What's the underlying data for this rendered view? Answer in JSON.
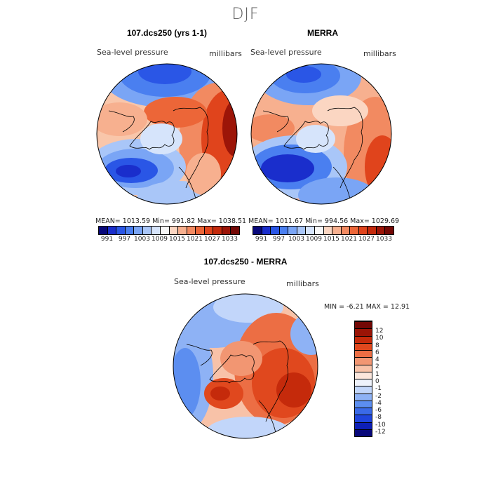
{
  "season": "DJF",
  "panels": {
    "model": {
      "title": "107.dcs250 (yrs 1-1)",
      "field_label": "Sea-level pressure",
      "units": "millibars",
      "stats": "MEAN= 1013.59   Min= 991.82   Max= 1038.51"
    },
    "obs": {
      "title": "MERRA",
      "field_label": "Sea-level pressure",
      "units": "millibars",
      "stats": "MEAN= 1011.67   Min= 994.56   Max= 1029.69"
    },
    "diff": {
      "title": "107.dcs250 - MERRA",
      "field_label": "Sea-level pressure",
      "units": "millibars",
      "stats": "MIN =   -6.21  MAX =   12.91"
    }
  },
  "slp_colorbar": {
    "labels": [
      "991",
      "997",
      "1003",
      "1009",
      "1015",
      "1021",
      "1027",
      "1033"
    ],
    "colors": [
      "#08087a",
      "#1a2ecc",
      "#2a56e6",
      "#4a7ff0",
      "#7aa5f5",
      "#a9c6f8",
      "#d6e4fb",
      "#f7f7f7",
      "#fbd6c2",
      "#f7b08f",
      "#f28a61",
      "#ec6638",
      "#e0441c",
      "#c42a0c",
      "#9c1508",
      "#730805"
    ]
  },
  "diff_colorbar": {
    "labels": [
      "-12",
      "-10",
      "-8",
      "-6",
      "-4",
      "-2",
      "-1",
      "0",
      "1",
      "2",
      "4",
      "6",
      "8",
      "10",
      "12"
    ],
    "colors": [
      "#08087a",
      "#0d1fb5",
      "#1f45dd",
      "#3a6ae8",
      "#5c8ef0",
      "#8eb2f5",
      "#c2d6fa",
      "#eef2fb",
      "#fbe6dc",
      "#f8c2a8",
      "#f29672",
      "#ec6e44",
      "#e0481e",
      "#c52a0b",
      "#9a1406",
      "#730805"
    ]
  },
  "map_colors": {
    "deep_blue": "#1f3fd8",
    "mid_blue": "#5a86ee",
    "light_blue": "#b8cff8",
    "white": "#f6f3f1",
    "light_red": "#f8b89a",
    "mid_red": "#ee7040",
    "deep_red": "#c8300c",
    "darkest_red": "#8a0d06"
  }
}
